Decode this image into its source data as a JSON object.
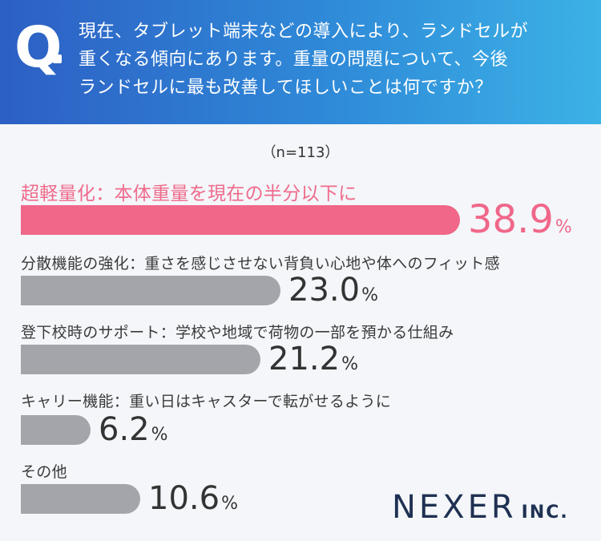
{
  "header": {
    "q_letter": "Q",
    "question_lines": [
      "現在、タブレット端末などの導入により、ランドセルが",
      "重くなる傾向にあります。重量の問題について、今後",
      "ランドセルに最も改善してほしいことは何ですか？"
    ]
  },
  "sample_size": "（n=113）",
  "colors": {
    "highlight": "#f0678a",
    "default": "#a4a5aa",
    "header_start": "#2d5fc4",
    "header_end": "#3cb2e6"
  },
  "chart_data": {
    "type": "bar",
    "orientation": "horizontal",
    "unit": "%",
    "categories": [
      "超軽量化：本体重量を現在の半分以下に",
      "分散機能の強化：重さを感じさせない背負い心地や体へのフィット感",
      "登下校時のサポート：学校や地域で荷物の一部を預かる仕組み",
      "キャリー機能：重い日はキャスターで転がせるように",
      "その他"
    ],
    "values": [
      38.9,
      23.0,
      21.2,
      6.2,
      10.6
    ],
    "value_labels": [
      "38.9",
      "23.0",
      "21.2",
      "6.2",
      "10.6"
    ],
    "highlight_index": 0
  },
  "logo": {
    "main": "NEXER",
    "sub": "INC."
  }
}
